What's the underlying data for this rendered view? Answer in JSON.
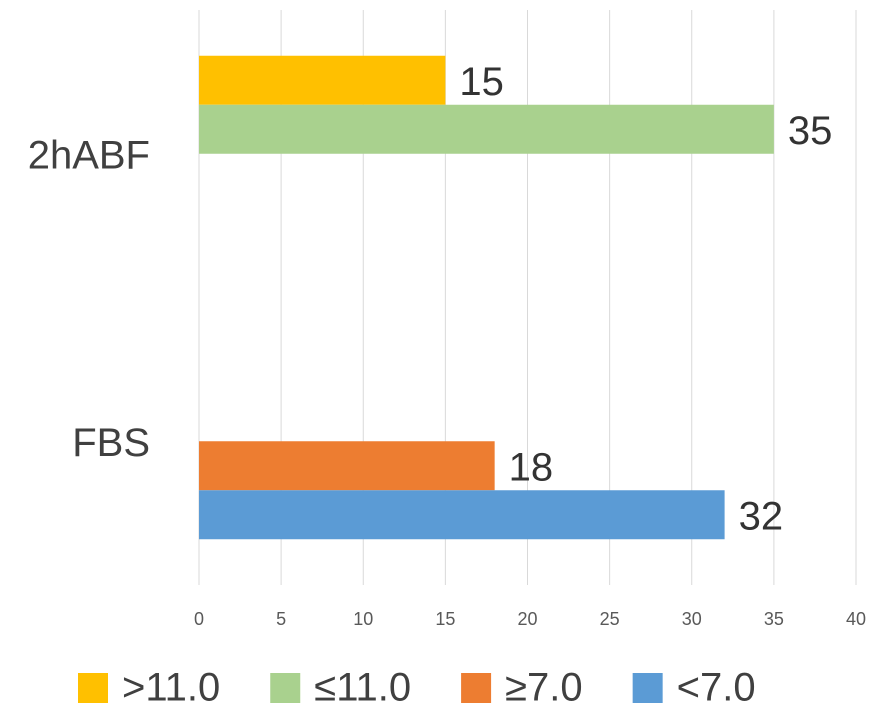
{
  "chart_data": {
    "type": "bar",
    "orientation": "horizontal",
    "categories": [
      "2hABF",
      "FBS"
    ],
    "series": [
      {
        "name": ">11.0",
        "color": "#ffc000",
        "values": [
          15,
          null
        ]
      },
      {
        "name": "≤11.0",
        "color": "#a9d18e",
        "values": [
          35,
          null
        ]
      },
      {
        "name": "≥7.0",
        "color": "#ed7d31",
        "values": [
          null,
          18
        ]
      },
      {
        "name": "<7.0",
        "color": "#5b9bd5",
        "values": [
          null,
          32
        ]
      }
    ],
    "xlim": [
      0,
      40
    ],
    "xticks": [
      0,
      5,
      10,
      15,
      20,
      25,
      30,
      35,
      40
    ],
    "grid": true,
    "legend": "bottom"
  }
}
